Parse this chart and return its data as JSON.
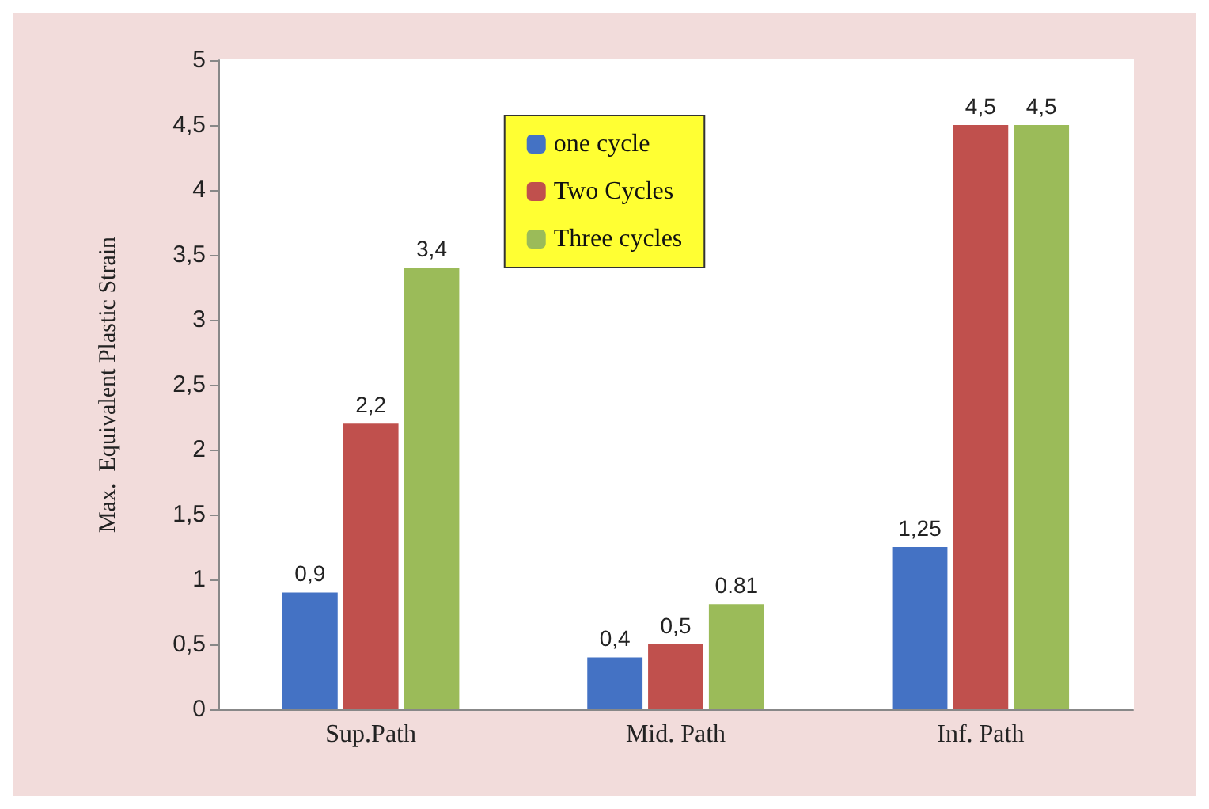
{
  "chart_data": {
    "type": "bar",
    "ylabel": "Max.  Equivalent Plastic Strain",
    "categories": [
      "Sup.Path",
      "Mid. Path",
      "Inf. Path"
    ],
    "series": [
      {
        "name": "one cycle",
        "color": "#4472c4",
        "values": [
          0.9,
          0.4,
          1.25
        ],
        "value_labels": [
          "0,9",
          "0,4",
          "1,25"
        ]
      },
      {
        "name": "Two Cycles",
        "color": "#c0504d",
        "values": [
          2.2,
          0.5,
          4.5
        ],
        "value_labels": [
          "2,2",
          "0,5",
          "4,5"
        ]
      },
      {
        "name": "Three cycles",
        "color": "#9bbb59",
        "values": [
          3.4,
          0.81,
          4.5
        ],
        "value_labels": [
          "3,4",
          "0.81",
          "4,5"
        ]
      }
    ],
    "ylim": [
      0,
      5
    ],
    "yticks": [
      0,
      {
        "value": 0.5,
        "label": "0,5"
      },
      1,
      {
        "value": 1.5,
        "label": "1,5"
      },
      2,
      {
        "value": 2.5,
        "label": "2,5"
      },
      3,
      {
        "value": 3.5,
        "label": "3,5"
      },
      4,
      {
        "value": 4.5,
        "label": "4,5"
      },
      5
    ],
    "grid": false,
    "legend": "top"
  }
}
